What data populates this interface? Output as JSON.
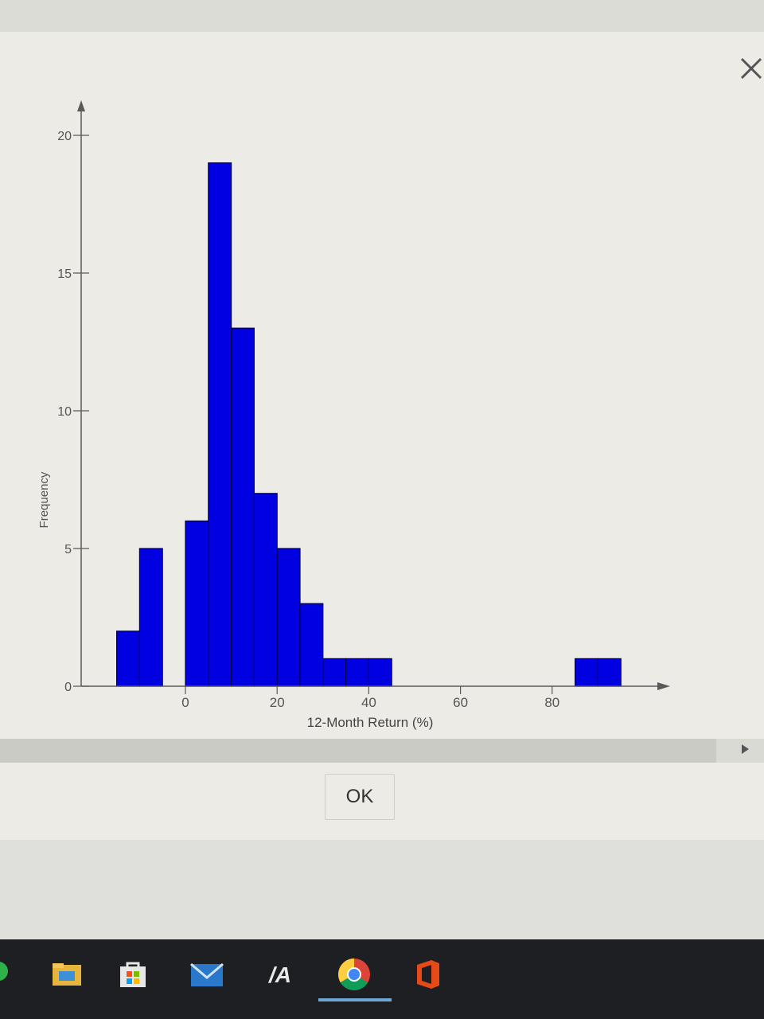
{
  "dialog": {
    "ok_label": "OK"
  },
  "chart_data": {
    "type": "bar",
    "title": "",
    "xlabel": "12-Month Return (%)",
    "ylabel": "Frequency",
    "xlim": [
      -20,
      97
    ],
    "ylim": [
      0,
      20
    ],
    "x_ticks": [
      0,
      20,
      40,
      60,
      80
    ],
    "y_ticks": [
      0,
      5,
      10,
      15,
      20
    ],
    "bin_width": 5,
    "bins": [
      {
        "start": -15,
        "end": -10,
        "value": 2
      },
      {
        "start": -10,
        "end": -5,
        "value": 5
      },
      {
        "start": 0,
        "end": 5,
        "value": 6
      },
      {
        "start": 5,
        "end": 10,
        "value": 19
      },
      {
        "start": 10,
        "end": 15,
        "value": 13
      },
      {
        "start": 15,
        "end": 20,
        "value": 7
      },
      {
        "start": 20,
        "end": 25,
        "value": 5
      },
      {
        "start": 25,
        "end": 30,
        "value": 3
      },
      {
        "start": 30,
        "end": 35,
        "value": 1
      },
      {
        "start": 35,
        "end": 40,
        "value": 1
      },
      {
        "start": 40,
        "end": 45,
        "value": 1
      },
      {
        "start": 85,
        "end": 90,
        "value": 1
      },
      {
        "start": 90,
        "end": 95,
        "value": 1
      }
    ],
    "bar_color": "#0000e0",
    "grid": false
  },
  "taskbar": {
    "icons": [
      "file-explorer-icon",
      "store-icon",
      "mail-icon",
      "mymathlab-icon",
      "chrome-icon",
      "office-icon"
    ]
  },
  "colors": {
    "bar": "#0000e0",
    "bar_outline": "#00004a",
    "axis": "#5a5a5a"
  }
}
